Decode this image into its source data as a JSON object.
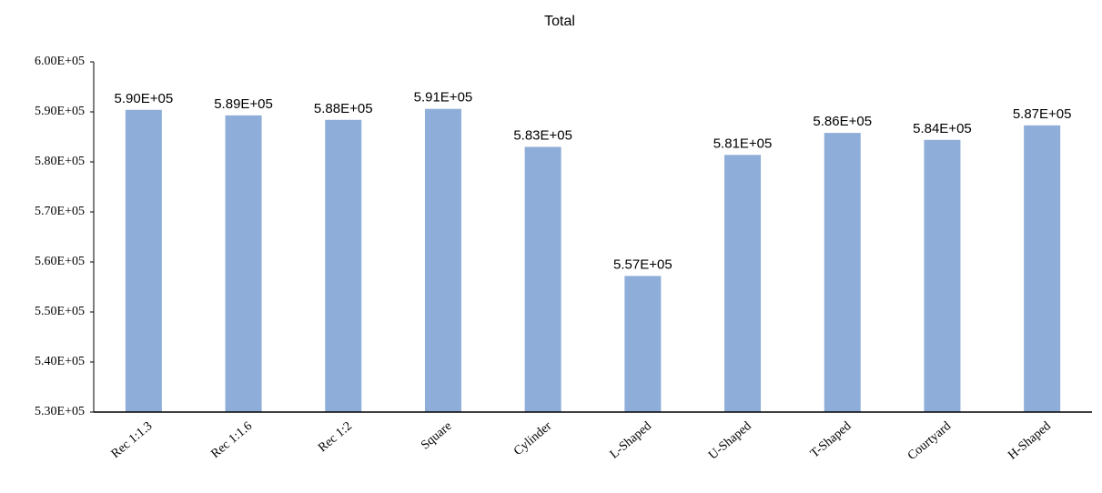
{
  "chart_data": {
    "type": "bar",
    "title": "Total",
    "categories": [
      "Rec 1:1.3",
      "Rec 1:1.6",
      "Rec 1:2",
      "Square",
      "Cylinder",
      "L-Shaped",
      "U-Shaped",
      "T-Shaped",
      "Courtyard",
      "H-Shaped"
    ],
    "values": [
      590400,
      589300,
      588400,
      590600,
      583000,
      557200,
      581400,
      585800,
      584400,
      587300
    ],
    "value_labels": [
      "5.90E+05",
      "5.89E+05",
      "5.88E+05",
      "5.91E+05",
      "5.83E+05",
      "5.57E+05",
      "5.81E+05",
      "5.86E+05",
      "5.84E+05",
      "5.87E+05"
    ],
    "color": "#8eadd8",
    "ylim": [
      530000,
      600000
    ],
    "yticks": [
      {
        "value": 530000,
        "label": "5.30E+05"
      },
      {
        "value": 540000,
        "label": "5.40E+05"
      },
      {
        "value": 550000,
        "label": "5.50E+05"
      },
      {
        "value": 560000,
        "label": "5.60E+05"
      },
      {
        "value": 570000,
        "label": "5.70E+05"
      },
      {
        "value": 580000,
        "label": "5.80E+05"
      },
      {
        "value": 590000,
        "label": "5.90E+05"
      },
      {
        "value": 600000,
        "label": "6.00E+05"
      }
    ],
    "grid": false
  }
}
